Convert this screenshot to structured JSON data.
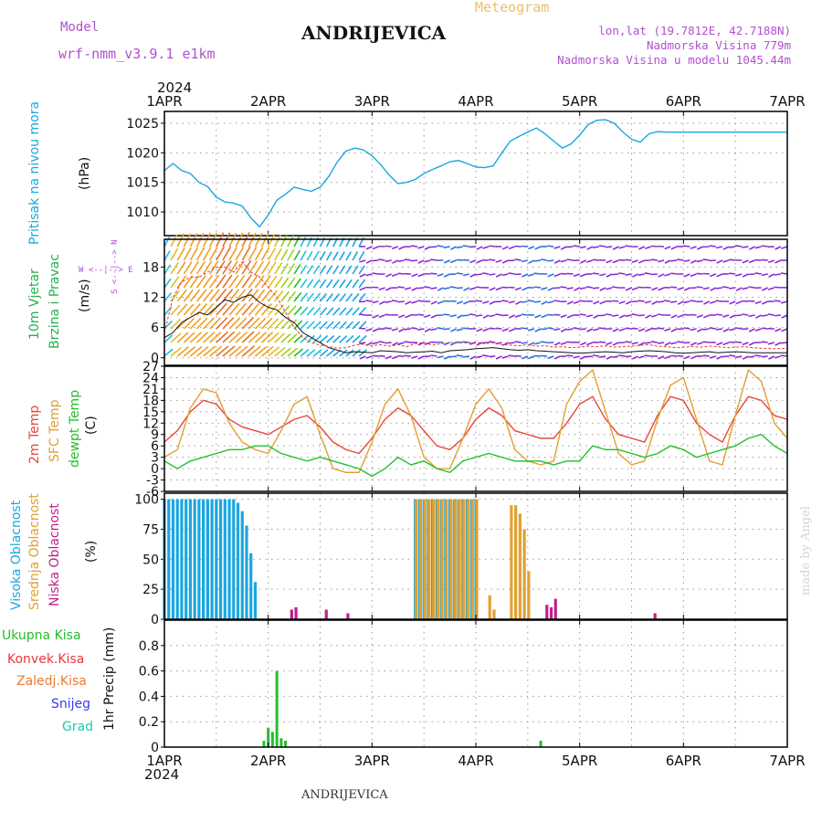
{
  "header": {
    "model_label": "Model",
    "model_name": "wrf-nmm_v3.9.1  e1km",
    "station_title": "ANDRIJEVICA",
    "product": "Meteogram",
    "lonlat": "lon,lat (19.7812E, 42.7188N)",
    "elevation": "Nadmorska Visina 779m",
    "model_elevation": "Nadmorska Visina u modelu 1045.44m"
  },
  "footer": {
    "station": "ANDRIJEVICA",
    "credit": "made by Angel"
  },
  "time_axis": {
    "year": "2024",
    "labels": [
      "1APR",
      "2APR",
      "3APR",
      "4APR",
      "5APR",
      "6APR",
      "7APR"
    ]
  },
  "colors": {
    "pressure": "#1ba6e0",
    "wind_label": "#22b14c",
    "wind_label2": "#22b14c",
    "temp2m": "#e8473a",
    "sfc": "#e0a030",
    "dew": "#22c02a",
    "high_cloud": "#1ba6e0",
    "mid_cloud": "#e0a030",
    "low_cloud": "#c0208a",
    "rain": "#22c02a",
    "conv": "#e83838",
    "frz": "#ef7a2a",
    "snow": "#3a3ae8",
    "hail": "#20c8b0",
    "compass": "#b050d0"
  },
  "panels": {
    "pressure": {
      "ylabel_a": "Pritisak na nivou mora",
      "ylabel_b": "(hPa)"
    },
    "wind": {
      "ylabel_a": "10m Vjetar",
      "ylabel_b": "Brzina i Pravac",
      "ylabel_c": "(m/s)",
      "compass": "W <--|--> E",
      "compass_v": "S <--|--> N"
    },
    "temperature": {
      "ylabel_a": "2m Temp",
      "ylabel_b": "SFC Temp",
      "ylabel_c": "dewpt Temp",
      "ylabel_d": "(C)"
    },
    "cloud": {
      "ylabel_a": "Visoka Oblacnost",
      "ylabel_b": "Srednja Oblacnost",
      "ylabel_c": "Niska  Oblacnost",
      "ylabel_d": "(%)"
    },
    "precip": {
      "legend": [
        "Ukupna  Kisa",
        "Konvek.Kisa",
        "Zaledj.Kisa",
        "Snijeg",
        "Grad"
      ],
      "ylabel": "1hr Precip (mm)"
    }
  },
  "chart_data": [
    {
      "type": "line",
      "name": "pressure",
      "x_unit": "hours since 1APR 00",
      "xlim": [
        0,
        144
      ],
      "ylim": [
        1006,
        1027
      ],
      "yticks": [
        1010,
        1015,
        1020,
        1025
      ],
      "grid": true,
      "series": [
        {
          "x": [
            0,
            2,
            4,
            6,
            8,
            10,
            12,
            14,
            16,
            18,
            20,
            22,
            24,
            26,
            28,
            30,
            32,
            34,
            36,
            38,
            40,
            42,
            44,
            46,
            48,
            50,
            52,
            54,
            56,
            58,
            60,
            62,
            64,
            66,
            68,
            70,
            72,
            74,
            76,
            78,
            80,
            82,
            84,
            86,
            88,
            90,
            92,
            94,
            96,
            98,
            100,
            102,
            104,
            106,
            108,
            110,
            112,
            114,
            116,
            118,
            120,
            122,
            124,
            126,
            128,
            130,
            132,
            134,
            136,
            138,
            140,
            142,
            144
          ],
          "values": [
            1017,
            1018.2,
            1017,
            1016.5,
            1015,
            1014.3,
            1012.5,
            1011.7,
            1011.5,
            1011,
            1009,
            1007.5,
            1009.5,
            1012,
            1013,
            1014.2,
            1013.8,
            1013.5,
            1014.2,
            1016,
            1018.5,
            1020.3,
            1020.8,
            1020.5,
            1019.5,
            1018,
            1016.2,
            1014.8,
            1015,
            1015.5,
            1016.5,
            1017.2,
            1017.8,
            1018.5,
            1018.7,
            1018.2,
            1017.6,
            1017.5,
            1017.8,
            1020,
            1022,
            1022.8,
            1023.5,
            1024.2,
            1023.2,
            1022,
            1020.8,
            1021.5,
            1023,
            1024.8,
            1025.5,
            1025.6,
            1025,
            1023.5,
            1022.3,
            1021.8,
            1023.2,
            1023.6,
            1023.5,
            1023.5,
            1023.5,
            1023.5,
            1023.5,
            1023.5,
            1023.5,
            1023.5,
            1023.5,
            1023.5,
            1023.5,
            1023.5,
            1023.5,
            1023.5,
            1023.5
          ]
        }
      ]
    },
    {
      "type": "line",
      "name": "wind",
      "x_unit": "hours since 1APR 00",
      "xlim": [
        0,
        144
      ],
      "ylim": [
        -1.5,
        23.5
      ],
      "yticks": [
        0,
        6,
        12,
        18
      ],
      "grid": true,
      "series": [
        {
          "name": "wind_speed",
          "x": [
            0,
            2,
            4,
            6,
            8,
            10,
            12,
            14,
            16,
            18,
            20,
            22,
            24,
            26,
            28,
            30,
            32,
            34,
            36,
            38,
            40,
            42,
            44,
            46,
            48,
            50,
            52,
            54,
            56,
            58,
            60,
            62,
            64,
            66,
            68,
            70,
            72,
            74,
            76,
            78,
            80,
            82,
            84,
            86,
            88,
            90,
            92,
            94,
            96,
            98,
            100,
            102,
            104,
            106,
            108,
            110,
            112,
            114,
            116,
            118,
            120,
            122,
            124,
            126,
            128,
            130,
            132,
            134,
            136,
            138,
            140,
            142,
            144
          ],
          "values": [
            4,
            5,
            7,
            8,
            9,
            8.5,
            10,
            11.5,
            11,
            12,
            12.5,
            11,
            10,
            9.5,
            8,
            7,
            5,
            4,
            3,
            2,
            1.5,
            1,
            1.2,
            1.1,
            1,
            1.4,
            1.3,
            1.2,
            1,
            1.1,
            1.2,
            1.3,
            1,
            1.4,
            1.5,
            1.6,
            1.8,
            1.9,
            2,
            1.8,
            1.6,
            1.5,
            1.6,
            1.4,
            1.3,
            1.2,
            1.1,
            1,
            0.9,
            1,
            1.1,
            1.2,
            1.1,
            1,
            1.2,
            1.3,
            1.4,
            1.3,
            1.2,
            1,
            0.9,
            1,
            1.1,
            1.2,
            1,
            1.1,
            1.2,
            1.1,
            1,
            1,
            1,
            1,
            1
          ]
        },
        {
          "name": "wind_gust",
          "x": [
            0,
            2,
            4,
            6,
            8,
            10,
            12,
            14,
            16,
            18,
            20,
            22,
            24,
            26,
            28,
            30,
            32,
            34,
            36,
            38,
            40,
            42,
            44,
            46,
            48,
            50,
            52,
            54,
            56,
            58,
            60,
            62,
            64,
            66,
            68,
            70,
            72,
            74,
            76,
            78,
            80,
            82,
            84,
            86,
            88,
            90,
            92,
            94,
            96,
            98,
            100,
            102,
            104,
            106,
            108,
            110,
            112,
            114,
            116,
            118,
            120,
            122,
            124,
            126,
            128,
            130,
            132,
            134,
            136,
            138,
            140,
            142,
            144
          ],
          "values": [
            5,
            12,
            15,
            16,
            16,
            17,
            18,
            18,
            17,
            19,
            17,
            16,
            14,
            12,
            9,
            6,
            4,
            3,
            2.5,
            2.2,
            1.9,
            2,
            2.5,
            2.7,
            2.4,
            2.6,
            2.3,
            2.6,
            2.2,
            2.8,
            3,
            2.5,
            2.8,
            3,
            3.2,
            2.9,
            3.1,
            2.8,
            3,
            2.6,
            2.5,
            2.4,
            2.6,
            2.3,
            2.4,
            2.1,
            2.2,
            2,
            2.1,
            2.3,
            2.2,
            2.4,
            2.1,
            2.2,
            2.3,
            2.5,
            2.6,
            2.3,
            2.2,
            2,
            2.1,
            2.2,
            2.1,
            2.3,
            2.2,
            2,
            2.1,
            2.2,
            2,
            1.9,
            1.8,
            1.8,
            1.9
          ]
        }
      ]
    },
    {
      "type": "line",
      "name": "temperature",
      "x_unit": "hours since 1APR 00",
      "xlim": [
        0,
        144
      ],
      "ylim": [
        -6,
        27
      ],
      "yticks": [
        -6,
        -3,
        0,
        3,
        6,
        9,
        12,
        15,
        18,
        21,
        24,
        27
      ],
      "grid": true,
      "series": [
        {
          "name": "2m",
          "color": "#e8473a",
          "x": [
            0,
            3,
            6,
            9,
            12,
            15,
            18,
            21,
            24,
            27,
            30,
            33,
            36,
            39,
            42,
            45,
            48,
            51,
            54,
            57,
            60,
            63,
            66,
            69,
            72,
            75,
            78,
            81,
            84,
            87,
            90,
            93,
            96,
            99,
            102,
            105,
            108,
            111,
            114,
            117,
            120,
            123,
            126,
            129,
            132,
            135,
            138,
            141,
            144
          ],
          "values": [
            7,
            10,
            15,
            18,
            17,
            13,
            11,
            10,
            9,
            11,
            13,
            14,
            11,
            7,
            5,
            4,
            8,
            13,
            16,
            14,
            10,
            6,
            5,
            8,
            13,
            16,
            14,
            10,
            9,
            8,
            8,
            12,
            17,
            19,
            13,
            9,
            8,
            7,
            14,
            19,
            18,
            12,
            9,
            7,
            14,
            19,
            18,
            14,
            13
          ]
        },
        {
          "name": "sfc",
          "color": "#e0a030",
          "x": [
            0,
            3,
            6,
            9,
            12,
            15,
            18,
            21,
            24,
            27,
            30,
            33,
            36,
            39,
            42,
            45,
            48,
            51,
            54,
            57,
            60,
            63,
            66,
            69,
            72,
            75,
            78,
            81,
            84,
            87,
            90,
            93,
            96,
            99,
            102,
            105,
            108,
            111,
            114,
            117,
            120,
            123,
            126,
            129,
            132,
            135,
            138,
            141,
            144
          ],
          "values": [
            3,
            5,
            16,
            21,
            20,
            12,
            7,
            5,
            4,
            10,
            17,
            19,
            9,
            0,
            -1,
            -1,
            7,
            17,
            21,
            14,
            3,
            0,
            0,
            8,
            17,
            21,
            16,
            5,
            2,
            1,
            2,
            17,
            23,
            26,
            15,
            4,
            1,
            2,
            13,
            22,
            24,
            13,
            2,
            1,
            14,
            26,
            23,
            12,
            8
          ]
        },
        {
          "name": "dew",
          "color": "#22c02a",
          "x": [
            0,
            3,
            6,
            9,
            12,
            15,
            18,
            21,
            24,
            27,
            30,
            33,
            36,
            39,
            42,
            45,
            48,
            51,
            54,
            57,
            60,
            63,
            66,
            69,
            72,
            75,
            78,
            81,
            84,
            87,
            90,
            93,
            96,
            99,
            102,
            105,
            108,
            111,
            114,
            117,
            120,
            123,
            126,
            129,
            132,
            135,
            138,
            141,
            144
          ],
          "values": [
            2,
            0,
            2,
            3,
            4,
            5,
            5,
            6,
            6,
            4,
            3,
            2,
            3,
            2,
            1,
            0,
            -2,
            0,
            3,
            1,
            2,
            0,
            -1,
            2,
            3,
            4,
            3,
            2,
            2,
            2,
            1,
            2,
            2,
            6,
            5,
            5,
            4,
            3,
            4,
            6,
            5,
            3,
            4,
            5,
            6,
            8,
            9,
            6,
            4
          ]
        }
      ]
    },
    {
      "type": "bar",
      "name": "cloud_cover",
      "x_unit": "hours since 1APR 00",
      "xlim": [
        0,
        144
      ],
      "ylim": [
        0,
        105
      ],
      "yticks": [
        0,
        25,
        50,
        75,
        100
      ],
      "grid": true,
      "series": [
        {
          "name": "high",
          "color": "#1ba6e0",
          "x": [
            0,
            1,
            2,
            3,
            4,
            5,
            6,
            7,
            8,
            9,
            10,
            11,
            12,
            13,
            14,
            15,
            16,
            17,
            18,
            19,
            20,
            21,
            58,
            59,
            60,
            61,
            62,
            63,
            64,
            65,
            66,
            67,
            68,
            69,
            70,
            71,
            72
          ],
          "values": [
            100,
            100,
            100,
            100,
            100,
            100,
            100,
            100,
            100,
            100,
            100,
            100,
            100,
            100,
            100,
            100,
            100,
            97,
            90,
            78,
            55,
            31,
            100,
            100,
            100,
            100,
            100,
            100,
            100,
            100,
            100,
            100,
            100,
            100,
            100,
            100,
            100
          ]
        },
        {
          "name": "mid",
          "color": "#e0a030",
          "x": [
            58,
            59,
            60,
            61,
            62,
            63,
            64,
            65,
            66,
            67,
            68,
            69,
            70,
            71,
            72,
            75,
            76,
            80,
            81,
            82,
            83,
            84
          ],
          "values": [
            100,
            100,
            100,
            100,
            100,
            100,
            100,
            100,
            100,
            100,
            100,
            100,
            100,
            100,
            100,
            20,
            8,
            95,
            95,
            88,
            75,
            40
          ]
        },
        {
          "name": "low",
          "color": "#c0208a",
          "x": [
            29,
            30,
            37,
            42,
            88,
            89,
            90,
            113
          ],
          "values": [
            8,
            10,
            8,
            5,
            12,
            10,
            17,
            5
          ]
        }
      ]
    },
    {
      "type": "bar",
      "name": "precip_1hr",
      "x_unit": "hours since 1APR 00",
      "xlim": [
        0,
        144
      ],
      "ylim": [
        0,
        1.0
      ],
      "yticks": [
        0,
        0.2,
        0.4,
        0.6,
        0.8
      ],
      "grid": true,
      "series": [
        {
          "name": "total",
          "color": "#22c02a",
          "x": [
            23,
            24,
            25,
            26,
            27,
            28,
            87
          ],
          "values": [
            0.05,
            0.15,
            0.12,
            0.6,
            0.07,
            0.05,
            0.05
          ]
        },
        {
          "name": "convective",
          "color": "#e83838",
          "x": [],
          "values": []
        }
      ]
    }
  ]
}
